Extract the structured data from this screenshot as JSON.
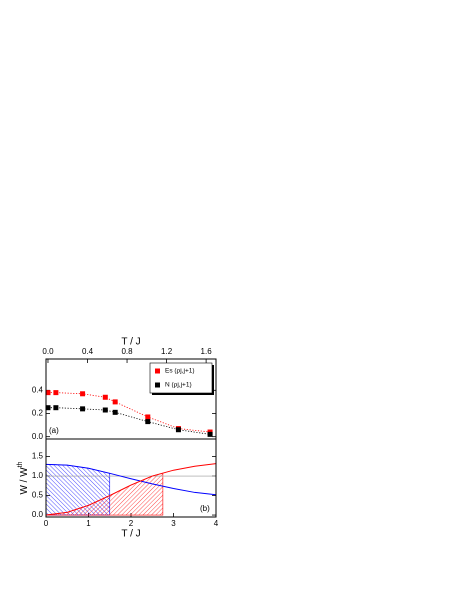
{
  "chart_data": [
    {
      "type": "scatter",
      "label": "(a)",
      "xlabel": "T / J",
      "xaxis_position": "top",
      "xlim": [
        -0.02,
        1.7
      ],
      "xticks": [
        {
          "value": 0,
          "label": "0.0"
        },
        {
          "value": 0.4,
          "label": "0.4"
        },
        {
          "value": 0.8,
          "label": "0.8"
        },
        {
          "value": 1.2,
          "label": "1.2"
        },
        {
          "value": 1.6,
          "label": "1.6"
        }
      ],
      "ylim": [
        -0.02,
        0.67
      ],
      "yticks": [
        {
          "value": 0,
          "label": "0.0"
        },
        {
          "value": 0.2,
          "label": "0.2"
        },
        {
          "value": 0.4,
          "label": "0.4"
        }
      ],
      "x": [
        0,
        0.08,
        0.35,
        0.58,
        0.68,
        1.01,
        1.32,
        1.64
      ],
      "series": [
        {
          "name": "Es (ρj,j+1)",
          "color": "#ff0000",
          "values": [
            0.38,
            0.38,
            0.37,
            0.34,
            0.3,
            0.17,
            0.07,
            0.04
          ]
        },
        {
          "name": "N (ρj,j+1)",
          "color": "#000000",
          "values": [
            0.25,
            0.25,
            0.24,
            0.23,
            0.21,
            0.13,
            0.06,
            0.02
          ]
        }
      ],
      "line_style": "dotted",
      "legend": "upper right"
    },
    {
      "type": "line",
      "label": "(b)",
      "xlabel": "T / J",
      "ylabel": "W / W",
      "ylabel_superscript": "th",
      "xlim": [
        0,
        4
      ],
      "xticks": [
        0,
        1,
        2,
        3,
        4
      ],
      "ylim": [
        -0.05,
        1.95
      ],
      "yticks": [
        {
          "value": 0,
          "label": "0.0"
        },
        {
          "value": 0.5,
          "label": "0.5"
        },
        {
          "value": 1,
          "label": "1.0"
        },
        {
          "value": 1.5,
          "label": "1.5"
        }
      ],
      "x": [
        0,
        0.5,
        1,
        1.5,
        2,
        2.5,
        3,
        3.5,
        4
      ],
      "series": [
        {
          "color": "#0000ff",
          "values": [
            1.3,
            1.28,
            1.2,
            1.07,
            0.93,
            0.8,
            0.68,
            0.58,
            0.52
          ]
        },
        {
          "color": "#ff0000",
          "values": [
            0,
            0.07,
            0.25,
            0.5,
            0.77,
            1.0,
            1.15,
            1.25,
            1.32
          ]
        }
      ],
      "hline": 1,
      "hline_color": "#999999",
      "hatched": [
        {
          "x": [
            0,
            1.5
          ],
          "series": 0
        },
        {
          "x": [
            0,
            2.75
          ],
          "series": 1
        }
      ]
    }
  ]
}
